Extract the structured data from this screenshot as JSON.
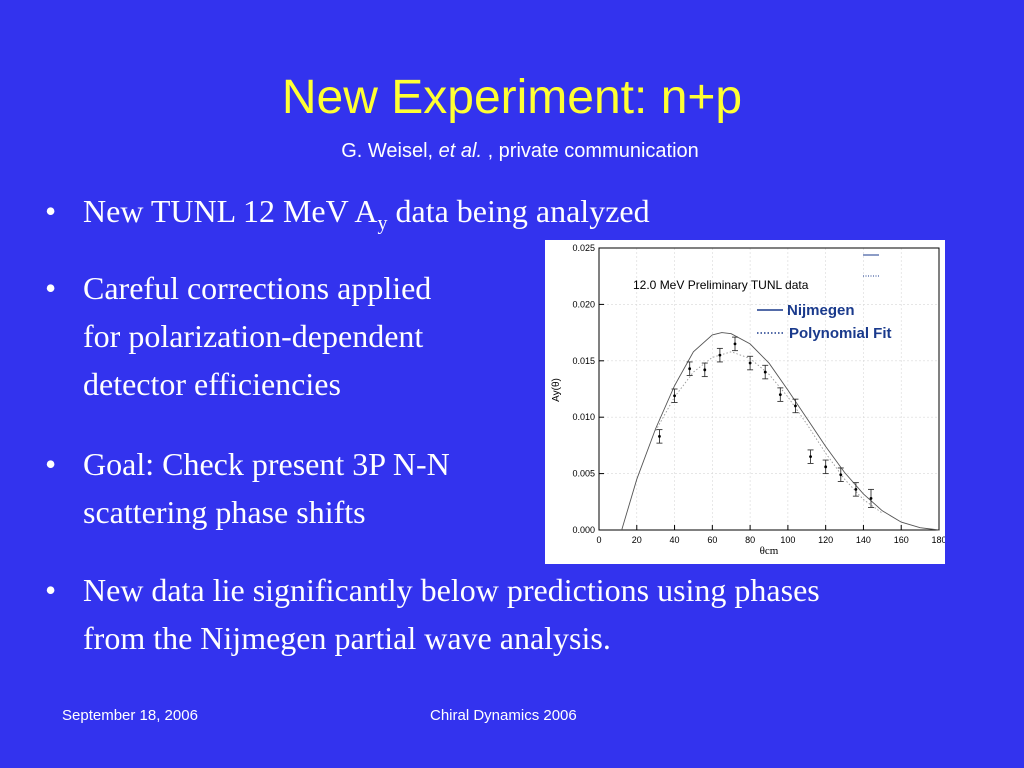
{
  "slide": {
    "title": "New Experiment: n+p",
    "subtitle": {
      "author": "G. Weisel, ",
      "etal": "et al.",
      "rest": " , private communication"
    },
    "bullets": [
      {
        "mark": "•",
        "before": "New TUNL 12 MeV A",
        "sub": "y",
        "after": " data being analyzed"
      },
      {
        "mark": "•",
        "lines": [
          "Careful corrections applied",
          "for polarization-dependent",
          "detector efficiencies"
        ]
      },
      {
        "mark": "•",
        "lines": [
          "Goal: Check present 3P N-N",
          "scattering phase shifts"
        ]
      },
      {
        "mark": "•",
        "lines": [
          "New data lie significantly below predictions using phases",
          "from the Nijmegen partial wave analysis."
        ]
      }
    ],
    "footer": {
      "date": "September 18, 2006",
      "event": "Chiral Dynamics 2006"
    },
    "colors": {
      "background": "#3333ee",
      "title": "#ffff33",
      "text": "#ffffff",
      "legend_text": "#1a3a8c"
    }
  },
  "chart_data": {
    "type": "scatter",
    "title": "",
    "annotation": "12.0 MeV Preliminary TUNL data",
    "xlabel": "θcm",
    "ylabel": "Ay(θ)",
    "xlim": [
      0,
      180
    ],
    "ylim": [
      0,
      0.025
    ],
    "xticks": [
      "0",
      "20",
      "40",
      "60",
      "80",
      "100",
      "120",
      "140",
      "160",
      "180"
    ],
    "yticks": [
      "0.000",
      "0.005",
      "0.010",
      "0.015",
      "0.020",
      "0.025"
    ],
    "legend": [
      {
        "name": "Nijmegen",
        "style": "solid"
      },
      {
        "name": "Polynomial Fit",
        "style": "dotted"
      }
    ],
    "series": [
      {
        "name": "12.0 MeV Preliminary TUNL data",
        "x": [
          32,
          40,
          48,
          56,
          64,
          72,
          80,
          88,
          96,
          104,
          112,
          120,
          128,
          136,
          144
        ],
        "y": [
          0.0083,
          0.0119,
          0.0143,
          0.0142,
          0.0155,
          0.0165,
          0.0148,
          0.014,
          0.012,
          0.011,
          0.0065,
          0.0056,
          0.0049,
          0.0036,
          0.0028
        ],
        "err": [
          0.0006,
          0.0006,
          0.0006,
          0.0006,
          0.0006,
          0.0006,
          0.0006,
          0.0006,
          0.0006,
          0.0006,
          0.0006,
          0.0006,
          0.0006,
          0.0006,
          0.0008
        ]
      },
      {
        "name": "Nijmegen",
        "x": [
          12,
          20,
          30,
          40,
          50,
          60,
          65,
          70,
          80,
          90,
          100,
          110,
          120,
          130,
          140,
          150,
          160,
          170,
          180
        ],
        "y": [
          0.0,
          0.0045,
          0.009,
          0.0128,
          0.0158,
          0.0173,
          0.0175,
          0.0174,
          0.0165,
          0.0148,
          0.0124,
          0.0099,
          0.0074,
          0.0051,
          0.0032,
          0.0017,
          0.0007,
          0.0002,
          0.0
        ]
      },
      {
        "name": "Polynomial Fit",
        "x": [
          30,
          40,
          50,
          60,
          70,
          80,
          90,
          100,
          110,
          120,
          130,
          140,
          150
        ],
        "y": [
          0.0088,
          0.0118,
          0.014,
          0.0153,
          0.0158,
          0.0152,
          0.0138,
          0.0118,
          0.0094,
          0.0068,
          0.0045,
          0.0027,
          0.0015
        ]
      }
    ]
  }
}
